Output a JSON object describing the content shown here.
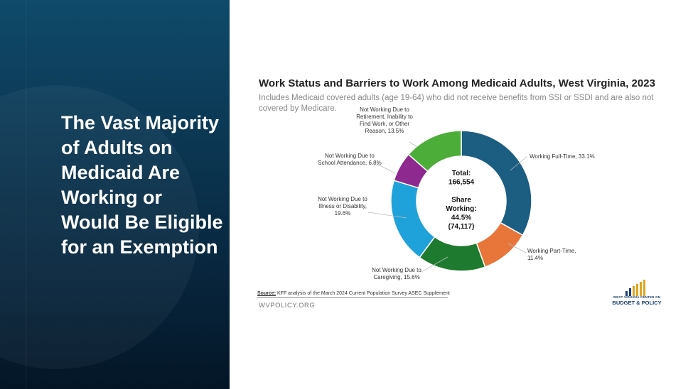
{
  "slide": {
    "headline": "The Vast Majority of Adults on Medicaid Are Working or Would Be Eligible for an Exemption"
  },
  "chart_data": {
    "type": "pie",
    "donut": true,
    "title": "Work Status and Barriers to Work Among Medicaid Adults, West Virginia, 2023",
    "subtitle": "Includes Medicaid covered adults (age 19-64) who did not receive benefits from SSI or SSDI and are also not covered by Medicare.",
    "center_text": [
      "Total:",
      "166,554",
      "",
      "Share",
      "Working:",
      "44.5%",
      "(74,117)"
    ],
    "slices": [
      {
        "label_lines": [
          "Working Full-Time, 33.1%"
        ],
        "value": 33.1,
        "color": "#1b5e82"
      },
      {
        "label_lines": [
          "Working Part-Time,",
          "11.4%"
        ],
        "value": 11.4,
        "color": "#e8763a"
      },
      {
        "label_lines": [
          "Not Working Due to",
          "Caregiving, 15.6%"
        ],
        "value": 15.6,
        "color": "#1e7a2e"
      },
      {
        "label_lines": [
          "Not Working Due to",
          "Illness or Disability,",
          "19.6%"
        ],
        "value": 19.6,
        "color": "#1fa2da"
      },
      {
        "label_lines": [
          "Not Working Due to",
          "School Attendance, 6.8%"
        ],
        "value": 6.8,
        "color": "#8e2a8f"
      },
      {
        "label_lines": [
          "Not Working Due to",
          "Retirement, Inability to",
          "Find Work, or Other",
          "Reason, 13.5%"
        ],
        "value": 13.5,
        "color": "#4cad38"
      }
    ],
    "source_label": "Source:",
    "source_text": " KFF analysis of the March 2024 Current Population Survey ASEC Supplement",
    "site": "WVPOLICY.ORG"
  },
  "logo": {
    "small_text": "WEST VIRGINIA CENTER ON",
    "big_text": "BUDGET & POLICY",
    "bar_colors": [
      "#1a3f6b",
      "#1a3f6b",
      "#e0a526",
      "#e0a526",
      "#e0a526",
      "#e0a526"
    ]
  }
}
